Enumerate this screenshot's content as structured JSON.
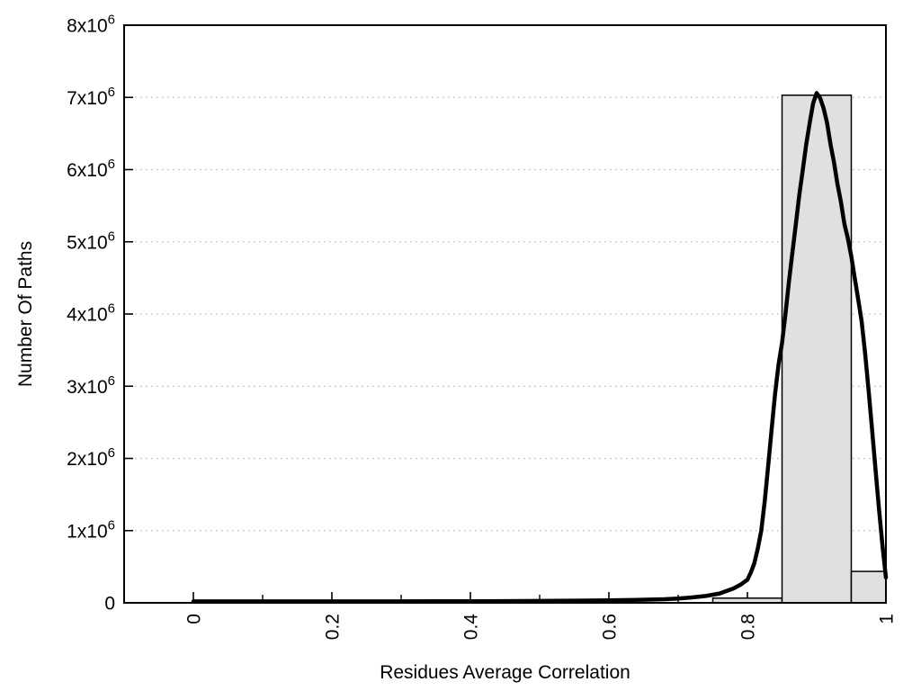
{
  "chart_data": {
    "type": "bar",
    "subtype": "histogram_with_fit_curve",
    "title": "",
    "xlabel": "Residues Average Correlation",
    "ylabel": "Number Of Paths",
    "xlim": [
      -0.1,
      1.0
    ],
    "ylim": [
      0,
      8000000
    ],
    "grid": {
      "horizontal_dotted": true,
      "vertical": false
    },
    "legend": "none",
    "x_major_ticks": [
      0,
      0.2,
      0.4,
      0.6,
      0.8,
      1.0
    ],
    "x_major_tick_labels": [
      "0",
      "0.2",
      "0.4",
      "0.6",
      "0.8",
      "1"
    ],
    "x_minor_ticks": [
      0.1,
      0.3,
      0.5,
      0.7,
      0.9
    ],
    "y_ticks": [
      0,
      1000000,
      2000000,
      3000000,
      4000000,
      5000000,
      6000000,
      7000000,
      8000000
    ],
    "y_tick_labels": [
      {
        "base": "0",
        "exp": ""
      },
      {
        "base": "1x10",
        "exp": "6"
      },
      {
        "base": "2x10",
        "exp": "6"
      },
      {
        "base": "3x10",
        "exp": "6"
      },
      {
        "base": "4x10",
        "exp": "6"
      },
      {
        "base": "5x10",
        "exp": "6"
      },
      {
        "base": "6x10",
        "exp": "6"
      },
      {
        "base": "7x10",
        "exp": "6"
      },
      {
        "base": "8x10",
        "exp": "6"
      }
    ],
    "bars": {
      "name": "path-correlation-histogram",
      "bins": [
        {
          "x_start": 0.75,
          "x_end": 0.85,
          "count": 65000
        },
        {
          "x_start": 0.85,
          "x_end": 0.95,
          "count": 7030000
        },
        {
          "x_start": 0.95,
          "x_end": 1.0,
          "count": 435000
        }
      ]
    },
    "series": [
      {
        "name": "fit-curve",
        "type": "line",
        "points": [
          [
            0.0,
            20000
          ],
          [
            0.05,
            20000
          ],
          [
            0.1,
            20000
          ],
          [
            0.15,
            20000
          ],
          [
            0.2,
            20000
          ],
          [
            0.25,
            20000
          ],
          [
            0.3,
            20000
          ],
          [
            0.35,
            21000
          ],
          [
            0.4,
            22000
          ],
          [
            0.45,
            24000
          ],
          [
            0.5,
            26000
          ],
          [
            0.55,
            30000
          ],
          [
            0.6,
            35000
          ],
          [
            0.64,
            40000
          ],
          [
            0.68,
            50000
          ],
          [
            0.7,
            60000
          ],
          [
            0.72,
            75000
          ],
          [
            0.74,
            95000
          ],
          [
            0.76,
            130000
          ],
          [
            0.78,
            200000
          ],
          [
            0.79,
            250000
          ],
          [
            0.8,
            320000
          ],
          [
            0.805,
            420000
          ],
          [
            0.81,
            550000
          ],
          [
            0.815,
            750000
          ],
          [
            0.82,
            1000000
          ],
          [
            0.825,
            1400000
          ],
          [
            0.83,
            1900000
          ],
          [
            0.835,
            2400000
          ],
          [
            0.84,
            2900000
          ],
          [
            0.845,
            3300000
          ],
          [
            0.85,
            3600000
          ],
          [
            0.855,
            4000000
          ],
          [
            0.86,
            4450000
          ],
          [
            0.865,
            4850000
          ],
          [
            0.87,
            5250000
          ],
          [
            0.875,
            5650000
          ],
          [
            0.88,
            6000000
          ],
          [
            0.885,
            6350000
          ],
          [
            0.89,
            6650000
          ],
          [
            0.895,
            6920000
          ],
          [
            0.9,
            7060000
          ],
          [
            0.905,
            6990000
          ],
          [
            0.91,
            6850000
          ],
          [
            0.915,
            6650000
          ],
          [
            0.92,
            6350000
          ],
          [
            0.925,
            6100000
          ],
          [
            0.93,
            5800000
          ],
          [
            0.935,
            5550000
          ],
          [
            0.94,
            5250000
          ],
          [
            0.945,
            5050000
          ],
          [
            0.95,
            4800000
          ],
          [
            0.955,
            4500000
          ],
          [
            0.96,
            4200000
          ],
          [
            0.965,
            3900000
          ],
          [
            0.97,
            3450000
          ],
          [
            0.975,
            2950000
          ],
          [
            0.98,
            2400000
          ],
          [
            0.985,
            1850000
          ],
          [
            0.99,
            1300000
          ],
          [
            0.995,
            800000
          ],
          [
            1.0,
            350000
          ]
        ]
      }
    ],
    "colors": {
      "background": "#ffffff",
      "bar_fill": "#e0e0e0",
      "bar_border": "#000000",
      "curve": "#000000",
      "grid_dots": "#b8b8b8",
      "axis": "#000000",
      "text": "#000000"
    }
  }
}
